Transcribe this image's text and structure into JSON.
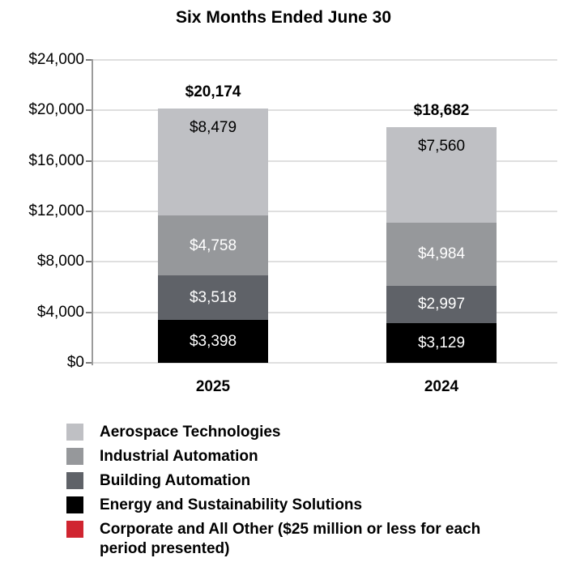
{
  "chart_data": {
    "type": "bar",
    "stacked": true,
    "title": "Six Months Ended June 30",
    "categories": [
      "2025",
      "2024"
    ],
    "series": [
      {
        "name": "Aerospace Technologies",
        "color": "#bfc0c4",
        "values": [
          8479,
          7560
        ],
        "labels": [
          "$8,479",
          "$7,560"
        ],
        "label_color": "#000000"
      },
      {
        "name": "Industrial Automation",
        "color": "#96989b",
        "values": [
          4758,
          4984
        ],
        "labels": [
          "$4,758",
          "$4,984"
        ],
        "label_color": "#ffffff"
      },
      {
        "name": "Building Automation",
        "color": "#5f6268",
        "values": [
          3518,
          2997
        ],
        "labels": [
          "$3,518",
          "$2,997"
        ],
        "label_color": "#ffffff"
      },
      {
        "name": "Energy and Sustainability Solutions",
        "color": "#000000",
        "values": [
          3398,
          3129
        ],
        "labels": [
          "$3,398",
          "$3,129"
        ],
        "label_color": "#ffffff"
      },
      {
        "name": "Corporate and All Other ($25 million or less for each period presented)",
        "color": "#d02530",
        "values": null,
        "labels": null,
        "label_color": "#ffffff"
      }
    ],
    "totals": [
      20174,
      18682
    ],
    "total_labels": [
      "$20,174",
      "$18,682"
    ],
    "yticks": {
      "values": [
        0,
        4000,
        8000,
        12000,
        16000,
        20000,
        24000
      ],
      "labels": [
        "$0",
        "$4,000",
        "$8,000",
        "$12,000",
        "$16,000",
        "$20,000",
        "$24,000"
      ]
    },
    "ylim": [
      0,
      24000
    ],
    "grid": true,
    "legend_position": "bottom-left",
    "text_color": "#000000",
    "gridline_color": "#dfdfdf",
    "axis_color": "#9b9b9b"
  }
}
